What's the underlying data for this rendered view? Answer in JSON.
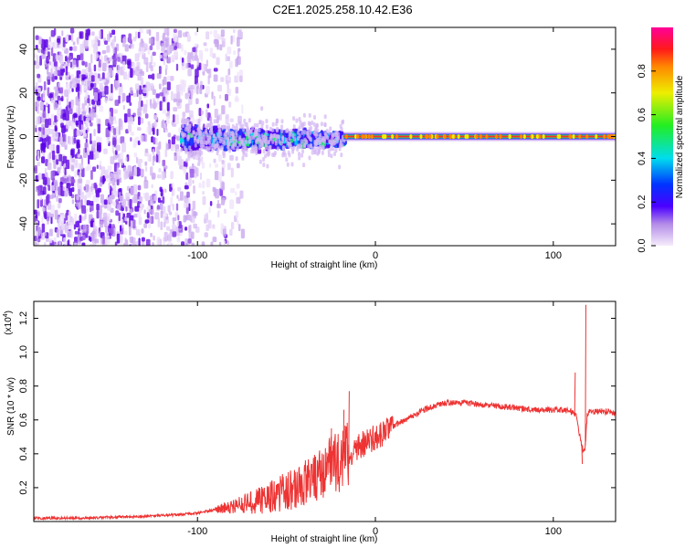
{
  "title": "C2E1.2025.258.10.42.E36",
  "chart_data": [
    {
      "type": "heatmap",
      "xlabel": "Height of straight line (km)",
      "ylabel": "Frequency (Hz)",
      "xlim": [
        -192,
        135
      ],
      "ylim": [
        -50,
        50
      ],
      "xticks": [
        -100,
        0,
        100
      ],
      "xtick_labels": [
        "-100",
        "0",
        "100"
      ],
      "yticks": [
        -40,
        -20,
        0,
        20,
        40
      ],
      "ytick_labels": [
        "-40",
        "-20",
        "0",
        "20",
        "40"
      ],
      "colorbar": {
        "label": "Normalized spectral amplitude",
        "range": [
          0,
          1
        ],
        "ticks": [
          0.0,
          0.2,
          0.4,
          0.6,
          0.8
        ],
        "tick_labels": [
          "0.0",
          "0.2",
          "0.4",
          "0.6",
          "0.8"
        ]
      },
      "features": {
        "scatter_region_x": [
          -192,
          -85
        ],
        "turbulent_band_x": [
          -110,
          -18
        ],
        "narrow_line_x": [
          -18,
          135
        ],
        "line_frequency_hz": 0
      }
    },
    {
      "type": "line",
      "xlabel": "Height of straight line (km)",
      "ylabel": "SNR (10 * v/v)",
      "y_scale_label": "(x10",
      "y_scale_exponent": "4",
      "y_scale_suffix": ")",
      "xlim": [
        -192,
        135
      ],
      "ylim": [
        0,
        1.3
      ],
      "xticks": [
        -100,
        0,
        100
      ],
      "xtick_labels": [
        "-100",
        "0",
        "100"
      ],
      "yticks": [
        0.2,
        0.4,
        0.6,
        0.8,
        1.0,
        1.2
      ],
      "ytick_labels": [
        "0.2",
        "0.4",
        "0.6",
        "0.8",
        "1.0",
        "1.2"
      ],
      "color": "#ee3333",
      "series": [
        {
          "name": "SNR",
          "x": [
            -192,
            -170,
            -150,
            -130,
            -110,
            -100,
            -90,
            -80,
            -70,
            -60,
            -50,
            -40,
            -35,
            -30,
            -25,
            -20,
            -15,
            -10,
            -5,
            0,
            5,
            10,
            15,
            20,
            25,
            30,
            35,
            40,
            50,
            60,
            70,
            80,
            90,
            100,
            105,
            110,
            113,
            115,
            117,
            118,
            119,
            120,
            122,
            125,
            130,
            135
          ],
          "values": [
            0.02,
            0.02,
            0.025,
            0.03,
            0.04,
            0.05,
            0.07,
            0.09,
            0.11,
            0.14,
            0.18,
            0.22,
            0.26,
            0.3,
            0.34,
            0.36,
            0.4,
            0.44,
            0.47,
            0.5,
            0.53,
            0.56,
            0.59,
            0.62,
            0.65,
            0.67,
            0.69,
            0.7,
            0.7,
            0.69,
            0.68,
            0.67,
            0.66,
            0.66,
            0.66,
            0.65,
            0.62,
            0.5,
            0.4,
            0.45,
            0.62,
            0.66,
            0.65,
            0.65,
            0.65,
            0.64
          ],
          "spikes": [
            {
              "x": -15,
              "value": 0.77
            },
            {
              "x": -18,
              "value": 0.66
            },
            {
              "x": -25,
              "value": 0.55
            },
            {
              "x": 112,
              "value": 0.88
            },
            {
              "x": 118,
              "value": 1.28
            },
            {
              "x": 116,
              "value": 0.34
            }
          ]
        }
      ]
    }
  ]
}
